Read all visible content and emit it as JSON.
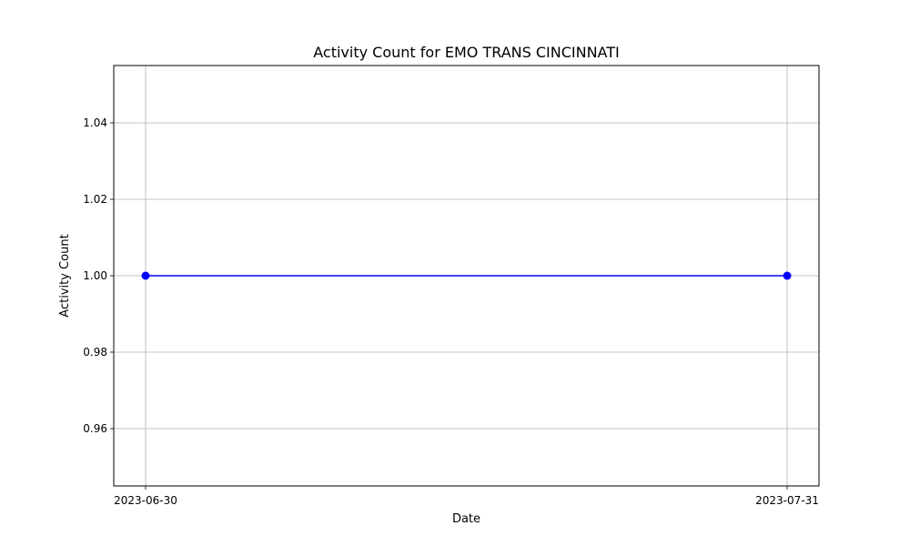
{
  "chart_data": {
    "type": "line",
    "title": "Activity Count for EMO TRANS CINCINNATI",
    "xlabel": "Date",
    "ylabel": "Activity Count",
    "x": [
      "2023-06-30",
      "2023-07-31"
    ],
    "series": [
      {
        "values": [
          1.0,
          1.0
        ],
        "color": "#0000ff",
        "marker": "circle"
      }
    ],
    "xticks": [
      "2023-06-30",
      "2023-07-31"
    ],
    "yticks": [
      "0.96",
      "0.98",
      "1.00",
      "1.02",
      "1.04"
    ],
    "ylim": [
      0.945,
      1.055
    ],
    "grid": true
  }
}
